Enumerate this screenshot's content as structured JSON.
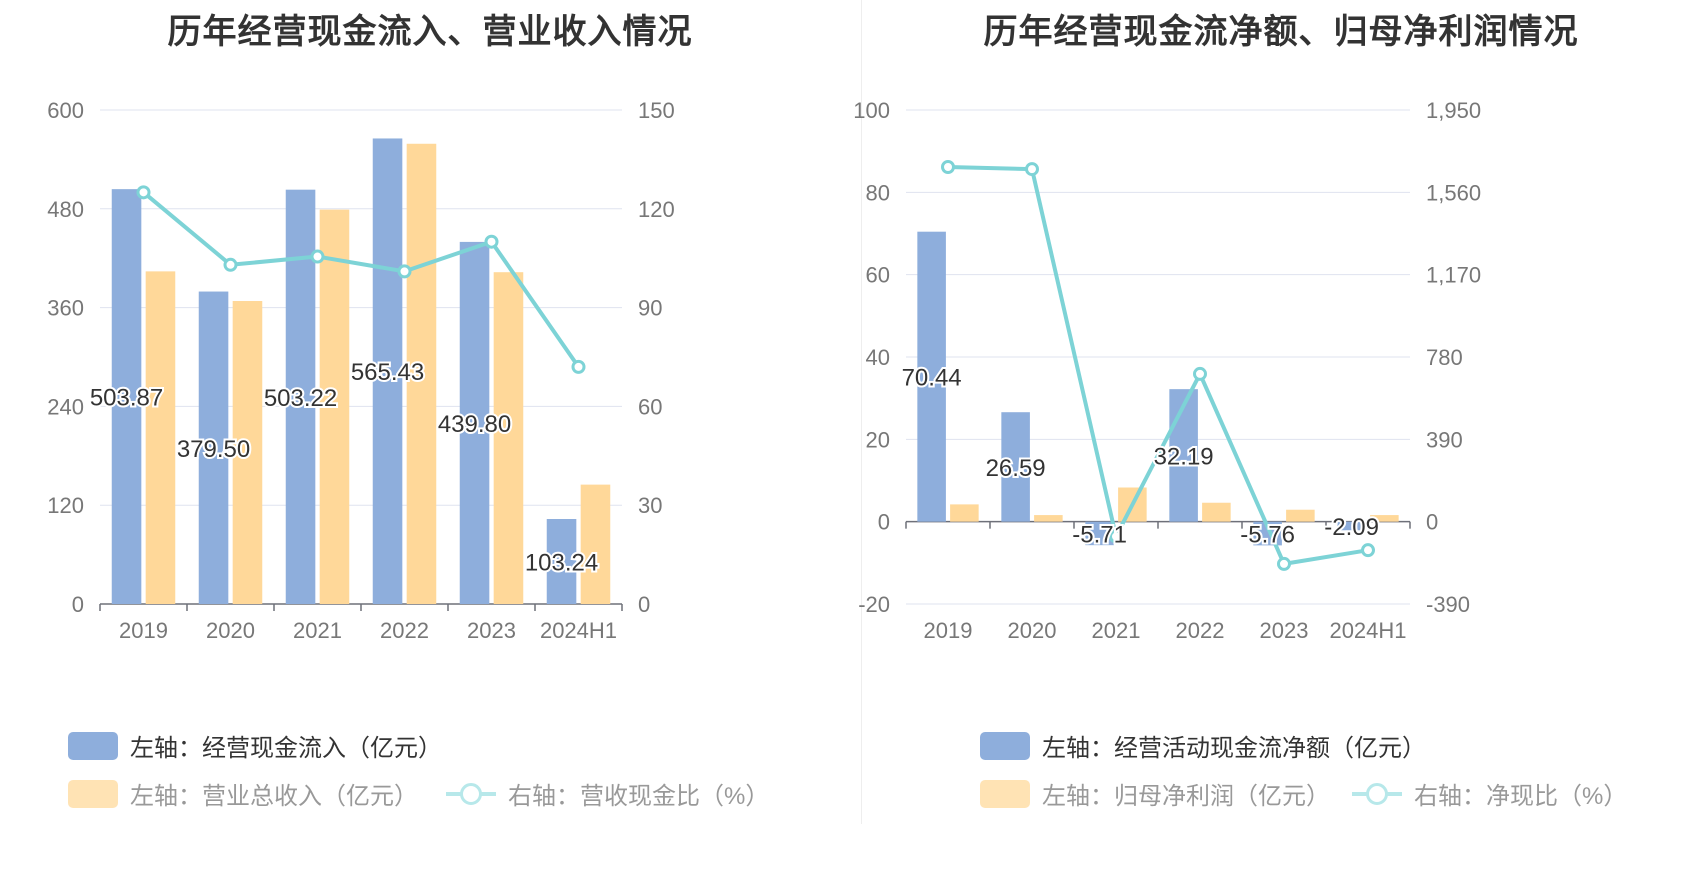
{
  "colors": {
    "bar_primary": "#8eaedc",
    "bar_secondary": "#ffd899",
    "line": "#7dd3d6",
    "grid": "#dfe3ef",
    "axis_text": "#777777",
    "label_text": "#333333"
  },
  "left_chart": {
    "title": "历年经营现金流入、营业收入情况",
    "legend": [
      {
        "label": "左轴：经营现金流入（亿元）",
        "kind": "bar",
        "color": "#8eaedc",
        "muted": false
      },
      {
        "label": "左轴：营业总收入（亿元）",
        "kind": "bar",
        "color": "#ffe3b4",
        "muted": true
      },
      {
        "label": "右轴：营收现金比（%）",
        "kind": "line",
        "color": "#b7e8ea",
        "muted": true
      }
    ]
  },
  "right_chart": {
    "title": "历年经营现金流净额、归母净利润情况",
    "legend": [
      {
        "label": "左轴：经营活动现金流净额（亿元）",
        "kind": "bar",
        "color": "#8eaedc",
        "muted": false
      },
      {
        "label": "左轴：归母净利润（亿元）",
        "kind": "bar",
        "color": "#ffe3b4",
        "muted": true
      },
      {
        "label": "右轴：净现比（%）",
        "kind": "line",
        "color": "#b7e8ea",
        "muted": true
      }
    ]
  },
  "chart_data": [
    {
      "type": "bar",
      "title": "历年经营现金流入、营业收入情况",
      "categories": [
        "2019",
        "2020",
        "2021",
        "2022",
        "2023",
        "2024H1"
      ],
      "y_left": {
        "min": 0,
        "max": 600,
        "ticks": [
          "0",
          "120",
          "240",
          "360",
          "480",
          "600"
        ]
      },
      "y_right": {
        "min": 0,
        "max": 150,
        "ticks": [
          "0",
          "30",
          "60",
          "90",
          "120",
          "150"
        ]
      },
      "series": [
        {
          "name": "左轴：经营现金流入（亿元）",
          "type": "bar",
          "axis": "left",
          "values": [
            503.87,
            379.5,
            503.22,
            565.43,
            439.8,
            103.24
          ],
          "labels": [
            "503.87",
            "379.50",
            "503.22",
            "565.43",
            "439.80",
            "103.24"
          ]
        },
        {
          "name": "左轴：营业总收入（亿元）",
          "type": "bar",
          "axis": "left",
          "values": [
            404,
            368,
            479,
            559,
            403,
            145
          ]
        },
        {
          "name": "右轴：营收现金比（%）",
          "type": "line",
          "axis": "right",
          "values": [
            125,
            103,
            105.5,
            101,
            110,
            72
          ]
        }
      ],
      "grid": true,
      "legend_position": "bottom-left"
    },
    {
      "type": "bar",
      "title": "历年经营现金流净额、归母净利润情况",
      "categories": [
        "2019",
        "2020",
        "2021",
        "2022",
        "2023",
        "2024H1"
      ],
      "y_left": {
        "min": -20,
        "max": 100,
        "ticks": [
          "-20",
          "0",
          "20",
          "40",
          "60",
          "80",
          "100"
        ]
      },
      "y_right": {
        "min": -390,
        "max": 1950,
        "ticks": [
          "-390",
          "0",
          "390",
          "780",
          "1,170",
          "1,560",
          "1,950"
        ]
      },
      "series": [
        {
          "name": "左轴：经营活动现金流净额（亿元）",
          "type": "bar",
          "axis": "left",
          "values": [
            70.44,
            26.59,
            -5.71,
            32.19,
            -5.76,
            -2.09
          ],
          "labels": [
            "70.44",
            "26.59",
            "-5.71",
            "32.19",
            "-5.76",
            "-2.09"
          ]
        },
        {
          "name": "左轴：归母净利润（亿元）",
          "type": "bar",
          "axis": "left",
          "values": [
            4.2,
            1.6,
            8.3,
            4.6,
            2.9,
            1.6
          ]
        },
        {
          "name": "右轴：净现比（%）",
          "type": "line",
          "axis": "right",
          "values": [
            1680,
            1670,
            -70,
            700,
            -200,
            -135
          ]
        }
      ],
      "grid": true,
      "legend_position": "bottom-left"
    }
  ]
}
